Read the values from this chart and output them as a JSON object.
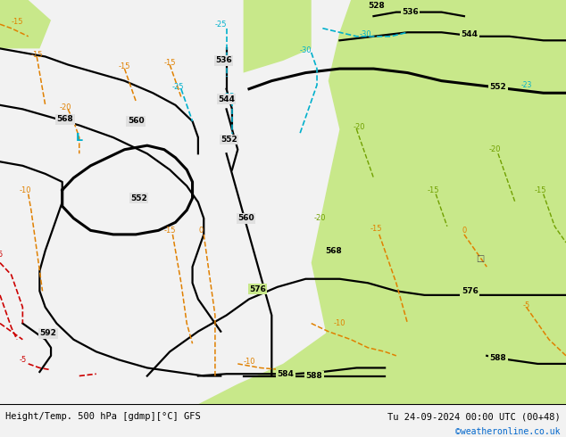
{
  "title_left": "Height/Temp. 500 hPa [gdmp][°C] GFS",
  "title_right": "Tu 24-09-2024 00:00 UTC (00+48)",
  "credit": "©weatheronline.co.uk",
  "credit_color": "#0066cc",
  "fig_width": 6.34,
  "fig_height": 4.9,
  "dpi": 100,
  "bg_gray": "#d0d0d0",
  "bg_sea": "#e0e0e0",
  "land_warm": "#c8e88a",
  "land_neutral": "#d0d0d0",
  "bottom_bg": "#f2f2f2",
  "hgt_color": "#000000",
  "hgt_lw": 1.6,
  "hgt_lw_thick": 2.2,
  "temp_orange": "#e08000",
  "temp_red": "#cc0000",
  "temp_cyan": "#00b0cc",
  "temp_green": "#70a000",
  "label_fontsize": 6.5
}
